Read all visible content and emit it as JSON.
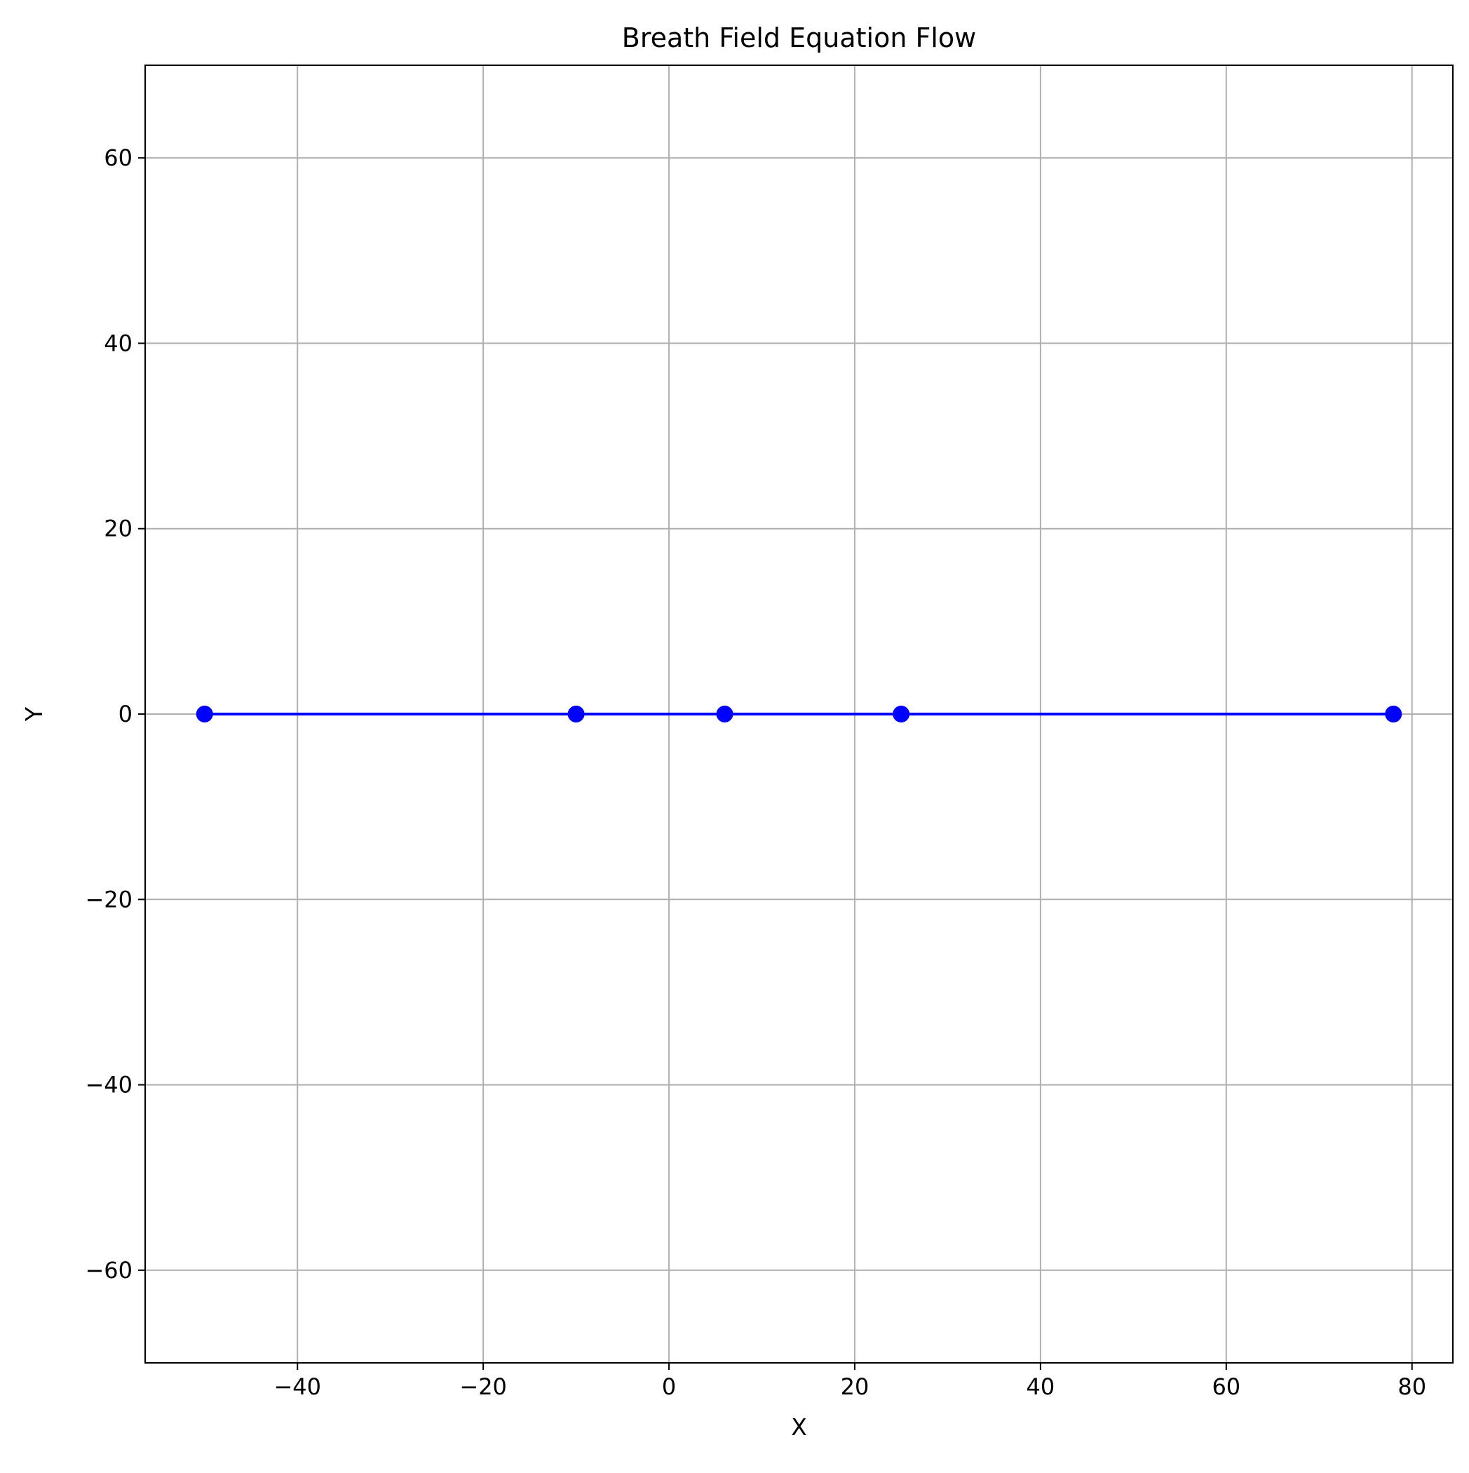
{
  "chart_data": {
    "type": "line",
    "title": "Breath Field Equation Flow",
    "xlabel": "X",
    "ylabel": "Y",
    "xlim": [
      -56.4,
      84.4
    ],
    "ylim": [
      -70,
      70
    ],
    "x_ticks": [
      -40,
      -20,
      0,
      20,
      40,
      60,
      80
    ],
    "x_tick_labels": [
      "−40",
      "−20",
      "0",
      "20",
      "40",
      "60",
      "80"
    ],
    "y_ticks": [
      -60,
      -40,
      -20,
      0,
      20,
      40,
      60
    ],
    "y_tick_labels": [
      "−60",
      "−40",
      "−20",
      "0",
      "20",
      "40",
      "60"
    ],
    "grid": true,
    "series": [
      {
        "x": [
          -50,
          -10,
          6,
          25,
          78
        ],
        "y": [
          0,
          0,
          0,
          0,
          0
        ],
        "color": "#0000ff",
        "marker": "circle"
      }
    ],
    "colors": {
      "grid": "#b0b0b0",
      "axes": "#000000",
      "series": "#0000ff"
    }
  }
}
